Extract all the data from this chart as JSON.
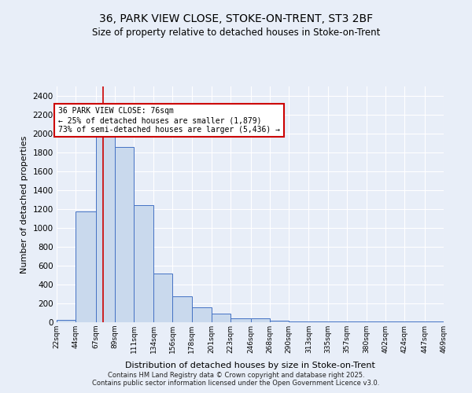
{
  "title_line1": "36, PARK VIEW CLOSE, STOKE-ON-TRENT, ST3 2BF",
  "title_line2": "Size of property relative to detached houses in Stoke-on-Trent",
  "xlabel": "Distribution of detached houses by size in Stoke-on-Trent",
  "ylabel": "Number of detached properties",
  "bin_labels": [
    "22sqm",
    "44sqm",
    "67sqm",
    "89sqm",
    "111sqm",
    "134sqm",
    "156sqm",
    "178sqm",
    "201sqm",
    "223sqm",
    "246sqm",
    "268sqm",
    "290sqm",
    "313sqm",
    "335sqm",
    "357sqm",
    "380sqm",
    "402sqm",
    "424sqm",
    "447sqm",
    "469sqm"
  ],
  "bin_edges": [
    22,
    44,
    67,
    89,
    111,
    134,
    156,
    178,
    201,
    223,
    246,
    268,
    290,
    313,
    335,
    357,
    380,
    402,
    424,
    447,
    469
  ],
  "bar_heights": [
    25,
    1175,
    2000,
    1860,
    1240,
    520,
    275,
    155,
    90,
    45,
    40,
    20,
    10,
    7,
    5,
    5,
    5,
    5,
    5,
    5
  ],
  "bar_color": "#c9d9ed",
  "bar_edge_color": "#4472c4",
  "property_size": 76,
  "red_line_color": "#cc0000",
  "annotation_text": "36 PARK VIEW CLOSE: 76sqm\n← 25% of detached houses are smaller (1,879)\n73% of semi-detached houses are larger (5,436) →",
  "annotation_box_color": "#ffffff",
  "annotation_box_edge": "#cc0000",
  "ylim": [
    0,
    2500
  ],
  "yticks": [
    0,
    200,
    400,
    600,
    800,
    1000,
    1200,
    1400,
    1600,
    1800,
    2000,
    2200,
    2400
  ],
  "bg_color": "#e8eef8",
  "footer_line1": "Contains HM Land Registry data © Crown copyright and database right 2025.",
  "footer_line2": "Contains public sector information licensed under the Open Government Licence v3.0."
}
